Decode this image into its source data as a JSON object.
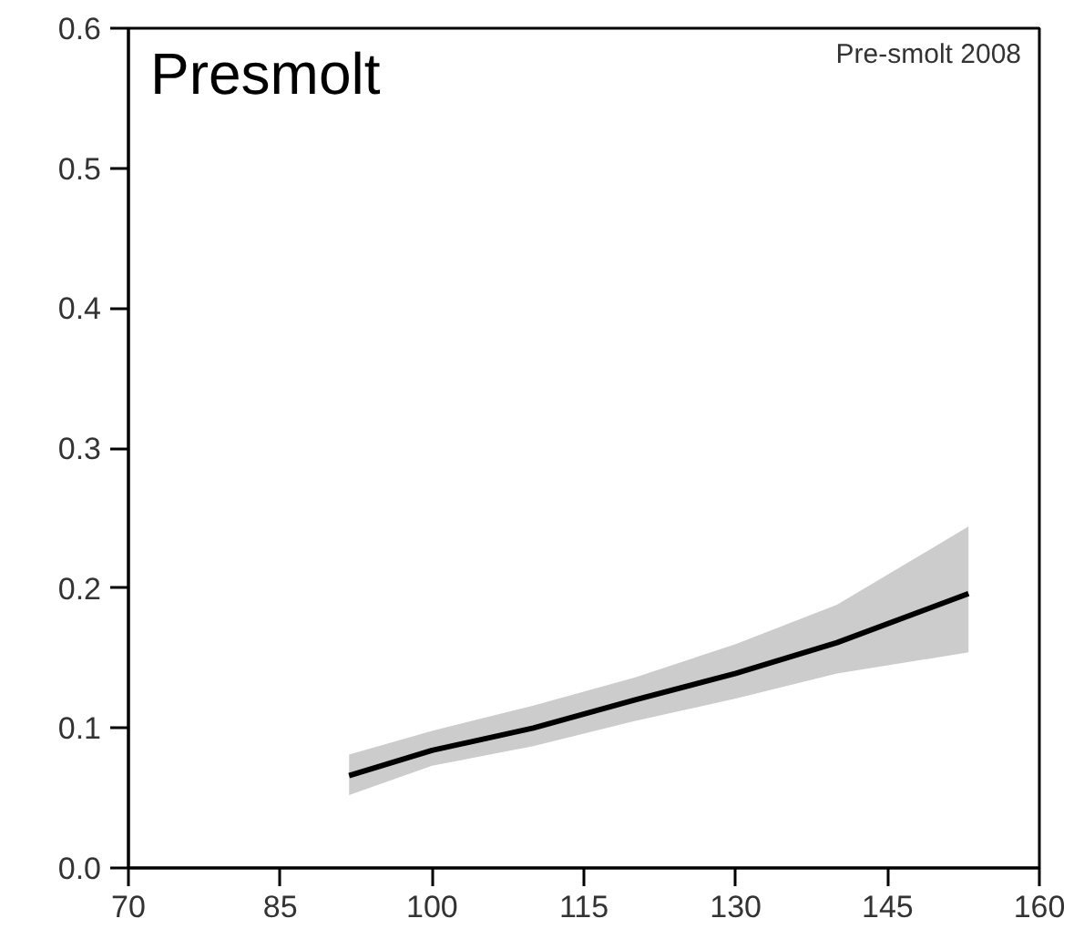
{
  "chart_data": {
    "type": "line",
    "x": [
      91.8,
      100,
      110,
      120,
      130,
      140,
      153
    ],
    "series": [
      {
        "color": "#000000",
        "values": [
          0.066,
          0.084,
          0.1,
          0.12,
          0.139,
          0.161,
          0.196
        ],
        "lower": [
          0.052,
          0.073,
          0.087,
          0.105,
          0.121,
          0.139,
          0.154
        ],
        "upper": [
          0.081,
          0.098,
          0.116,
          0.136,
          0.16,
          0.188,
          0.244
        ]
      }
    ],
    "xlim": [
      70,
      160
    ],
    "xticks": [
      70,
      85,
      100,
      115,
      130,
      145,
      160
    ],
    "ylim": [
      0,
      0.6
    ],
    "yticks": [
      {
        "value": 0,
        "label": "0.0"
      },
      {
        "value": 0.1,
        "label": "0.1"
      },
      {
        "value": 0.2,
        "label": "0.2"
      },
      {
        "value": 0.3,
        "label": "0.3"
      },
      {
        "value": 0.4,
        "label": "0.4"
      },
      {
        "value": 0.5,
        "label": "0.5"
      },
      {
        "value": 0.6,
        "label": "0.6"
      }
    ],
    "grid": false,
    "annotations": [
      "Presmolt",
      "Pre-smolt 2008"
    ]
  }
}
